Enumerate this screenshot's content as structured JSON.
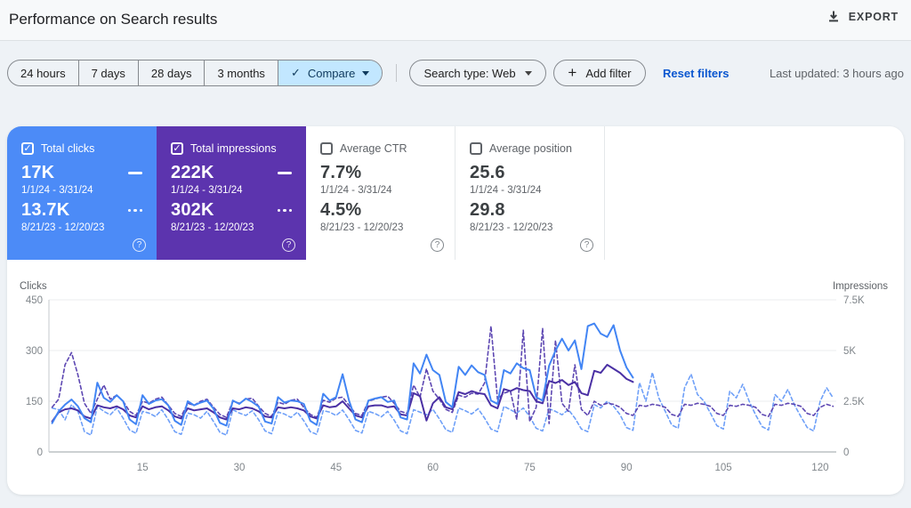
{
  "header": {
    "title": "Performance on Search results",
    "export_label": "EXPORT"
  },
  "filters": {
    "date_ranges": [
      "24 hours",
      "7 days",
      "28 days",
      "3 months"
    ],
    "compare": {
      "label": "Compare",
      "check": "✓",
      "bg": "#c2e7ff",
      "text_color": "#0f3a5c"
    },
    "search_type": {
      "label": "Search type: Web"
    },
    "add_filter": {
      "plus": "+",
      "label": "Add filter"
    },
    "reset_label": "Reset filters",
    "last_updated": "Last updated: 3 hours ago"
  },
  "metric_cards": [
    {
      "label": "Total clicks",
      "checked": true,
      "bg": "#4c8bf7",
      "current": {
        "value": "17K",
        "range": "1/1/24 - 3/31/24"
      },
      "previous": {
        "value": "13.7K",
        "range": "8/21/23 - 12/20/23"
      }
    },
    {
      "label": "Total impressions",
      "checked": true,
      "bg": "#5c34ae",
      "current": {
        "value": "222K",
        "range": "1/1/24 - 3/31/24"
      },
      "previous": {
        "value": "302K",
        "range": "8/21/23 - 12/20/23"
      }
    },
    {
      "label": "Average CTR",
      "checked": false,
      "bg": "#ffffff",
      "current": {
        "value": "7.7%",
        "range": "1/1/24 - 3/31/24"
      },
      "previous": {
        "value": "4.5%",
        "range": "8/21/23 - 12/20/23"
      }
    },
    {
      "label": "Average position",
      "checked": false,
      "bg": "#ffffff",
      "current": {
        "value": "25.6",
        "range": "1/1/24 - 3/31/24"
      },
      "previous": {
        "value": "29.8",
        "range": "8/21/23 - 12/20/23"
      }
    }
  ],
  "chart_data": {
    "type": "line",
    "x": {
      "unit": "day",
      "range": [
        1,
        122
      ],
      "ticks": [
        15,
        30,
        45,
        60,
        75,
        90,
        105,
        120
      ]
    },
    "y_left": {
      "label": "Clicks",
      "max": 450,
      "tick_values": [
        0,
        150,
        300,
        450
      ],
      "ticks": [
        "0",
        "150",
        "300",
        "450"
      ]
    },
    "y_right": {
      "label": "Impressions",
      "max": 7500,
      "tick_values": [
        0,
        2500,
        5000,
        7500
      ],
      "ticks": [
        "0",
        "2.5K",
        "5K",
        "7.5K"
      ]
    },
    "grid": true,
    "legend_position": "none",
    "series": [
      {
        "name": "Clicks 1/1/24 - 3/31/24",
        "axis": "left",
        "style": "solid",
        "color": "#4285f4",
        "values": [
          85,
          120,
          140,
          155,
          135,
          100,
          88,
          205,
          160,
          148,
          168,
          150,
          96,
          82,
          168,
          142,
          152,
          156,
          138,
          92,
          80,
          150,
          138,
          146,
          152,
          128,
          86,
          78,
          152,
          142,
          158,
          148,
          134,
          90,
          84,
          162,
          146,
          152,
          150,
          142,
          92,
          80,
          172,
          152,
          162,
          230,
          152,
          96,
          88,
          152,
          158,
          162,
          148,
          152,
          102,
          96,
          262,
          232,
          288,
          242,
          228,
          148,
          132,
          252,
          228,
          256,
          236,
          228,
          152,
          142,
          242,
          232,
          262,
          248,
          242,
          162,
          152,
          255,
          300,
          335,
          300,
          330,
          245,
          372,
          380,
          350,
          340,
          375,
          300,
          250,
          220
        ]
      },
      {
        "name": "Clicks 8/21/23 - 12/20/23",
        "axis": "left",
        "style": "dashed",
        "color": "#6fa0f8",
        "values": [
          130,
          125,
          95,
          140,
          120,
          60,
          50,
          135,
          120,
          110,
          130,
          100,
          65,
          55,
          120,
          115,
          105,
          125,
          95,
          60,
          52,
          115,
          110,
          100,
          120,
          90,
          58,
          50,
          125,
          115,
          108,
          122,
          95,
          62,
          54,
          118,
          112,
          102,
          118,
          92,
          60,
          52,
          122,
          118,
          108,
          124,
          96,
          64,
          56,
          120,
          114,
          104,
          120,
          94,
          62,
          54,
          125,
          118,
          110,
          126,
          98,
          66,
          58,
          130,
          122,
          112,
          128,
          100,
          68,
          60,
          135,
          125,
          115,
          130,
          105,
          70,
          62,
          128,
          120,
          110,
          125,
          100,
          68,
          60,
          140,
          130,
          150,
          135,
          110,
          72,
          64,
          205,
          150,
          235,
          160,
          120,
          80,
          70,
          190,
          230,
          170,
          150,
          115,
          78,
          68,
          180,
          160,
          200,
          150,
          110,
          75,
          65,
          170,
          150,
          185,
          140,
          105,
          72,
          62,
          150,
          190,
          160
        ]
      },
      {
        "name": "Impressions 1/1/24 - 3/31/24",
        "axis": "right",
        "style": "solid",
        "color": "#4a30a4",
        "values": [
          1500,
          1950,
          2100,
          2150,
          2050,
          1750,
          1650,
          2300,
          2200,
          2150,
          2250,
          2100,
          1800,
          1700,
          2250,
          2100,
          2200,
          2250,
          2050,
          1750,
          1650,
          2150,
          2050,
          2100,
          2150,
          1950,
          1700,
          1600,
          2150,
          2100,
          2200,
          2150,
          2000,
          1750,
          1700,
          2200,
          2150,
          2200,
          2150,
          2050,
          1750,
          1650,
          2300,
          2200,
          2250,
          2500,
          2150,
          1800,
          1700,
          2250,
          2300,
          2300,
          2200,
          2250,
          1850,
          1800,
          2900,
          2750,
          1550,
          2400,
          2700,
          2200,
          2100,
          2950,
          2850,
          3000,
          2900,
          2850,
          2300,
          2150,
          3100,
          3000,
          3150,
          3050,
          3000,
          2500,
          2400,
          3500,
          3400,
          3550,
          3300,
          3450,
          2900,
          2800,
          4000,
          3900,
          4300,
          4100,
          3900,
          3600,
          3450
        ]
      },
      {
        "name": "Impressions 8/21/23 - 12/20/23",
        "axis": "right",
        "style": "dashed",
        "color": "#5d47b2",
        "values": [
          2200,
          2600,
          4300,
          4900,
          3800,
          2400,
          1900,
          2600,
          3300,
          2600,
          2800,
          2500,
          2000,
          1800,
          2500,
          2400,
          2600,
          2700,
          2300,
          1900,
          1750,
          2400,
          2300,
          2500,
          2600,
          2200,
          1850,
          1700,
          2500,
          2400,
          2600,
          2650,
          2250,
          1900,
          1750,
          2450,
          2350,
          2550,
          2600,
          2200,
          1850,
          1700,
          2550,
          2450,
          2650,
          2700,
          2300,
          1900,
          1800,
          2500,
          2600,
          2700,
          2750,
          2400,
          2000,
          1900,
          3300,
          2700,
          4100,
          3000,
          2600,
          2100,
          1950,
          2800,
          2700,
          2900,
          2850,
          3400,
          6200,
          2600,
          2900,
          3000,
          1600,
          6000,
          1500,
          2200,
          6100,
          1400,
          5500,
          2400,
          2000,
          4300,
          2100,
          1800,
          2500,
          2300,
          2400,
          2350,
          2200,
          1900,
          1800,
          2300,
          2250,
          2350,
          2300,
          2200,
          1850,
          1750,
          2350,
          2300,
          2400,
          2350,
          2250,
          1900,
          1800,
          2300,
          2250,
          2350,
          2300,
          2200,
          1850,
          1750,
          2350,
          2300,
          2400,
          2350,
          2250,
          1900,
          1800,
          2200,
          2350,
          2250
        ]
      }
    ]
  }
}
